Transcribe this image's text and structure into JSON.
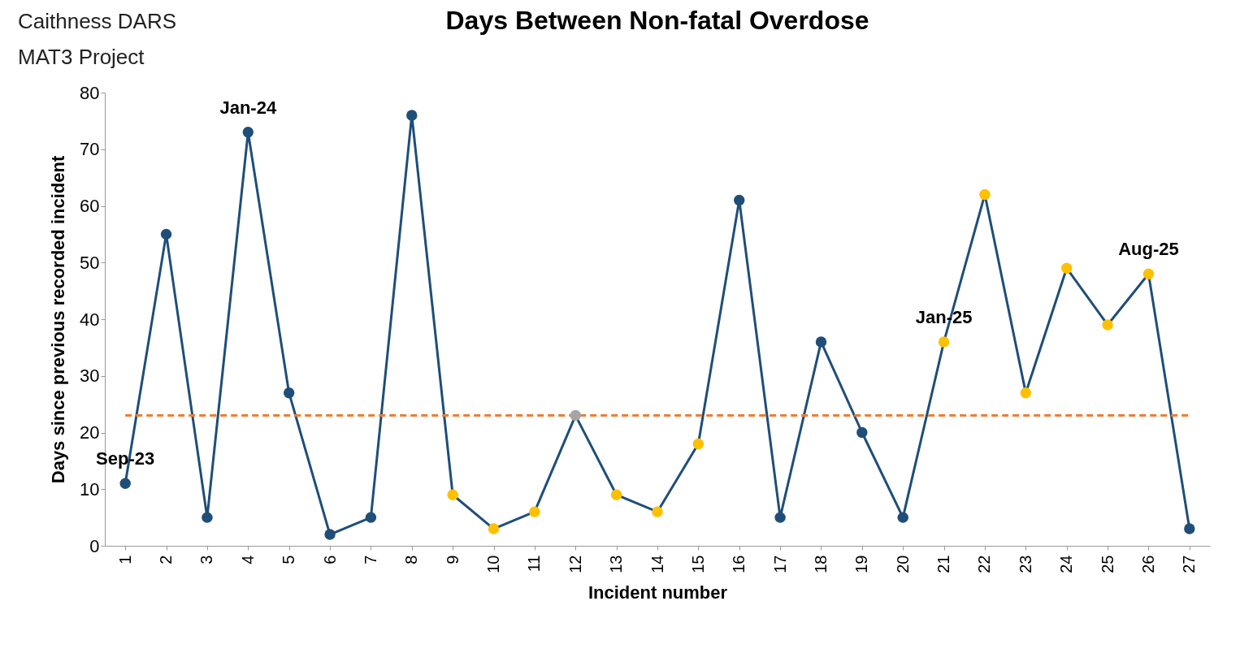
{
  "chart_data": {
    "type": "line",
    "title": "Days Between Non-fatal Overdose",
    "xlabel": "Incident number",
    "ylabel": "Days since previous recorded incident",
    "categories": [
      "1",
      "2",
      "3",
      "4",
      "5",
      "6",
      "7",
      "8",
      "9",
      "10",
      "11",
      "12",
      "13",
      "14",
      "15",
      "16",
      "17",
      "18",
      "19",
      "20",
      "21",
      "22",
      "23",
      "24",
      "25",
      "26",
      "27"
    ],
    "series": [
      {
        "color": "#1f4e79",
        "values": [
          11,
          55,
          5,
          73,
          27,
          2,
          5,
          76,
          9,
          3,
          6,
          23,
          9,
          6,
          18,
          61,
          5,
          36,
          20,
          5,
          36,
          62,
          27,
          49,
          39,
          48,
          3
        ],
        "colors": [
          "#1f4e79",
          "#1f4e79",
          "#1f4e79",
          "#1f4e79",
          "#1f4e79",
          "#1f4e79",
          "#1f4e79",
          "#1f4e79",
          "#ffc000",
          "#ffc000",
          "#ffc000",
          "#a5a5a5",
          "#ffc000",
          "#ffc000",
          "#ffc000",
          "#1f4e79",
          "#1f4e79",
          "#1f4e79",
          "#1f4e79",
          "#1f4e79",
          "#ffc000",
          "#ffc000",
          "#ffc000",
          "#ffc000",
          "#ffc000",
          "#ffc000",
          "#1f4e79"
        ]
      }
    ],
    "ylim": [
      0,
      80
    ],
    "yticks": [
      0,
      10,
      20,
      30,
      40,
      50,
      60,
      70,
      80
    ],
    "grid": false,
    "marker": "circle",
    "line_style": "solid",
    "ref_lines": [
      {
        "axis": "y",
        "value": 23,
        "color": "#ed7d31",
        "line_style": "dashed"
      }
    ],
    "annotations": [
      "Caithness DARS",
      "MAT3 Project",
      {
        "text": "Sep-23",
        "x": "1",
        "y": 11
      },
      {
        "text": "Jan-24",
        "x": "4",
        "y": 73
      },
      {
        "text": "Jan-25",
        "x": "21",
        "y": 36
      },
      {
        "text": "Aug-25",
        "x": "26",
        "y": 48
      }
    ]
  }
}
